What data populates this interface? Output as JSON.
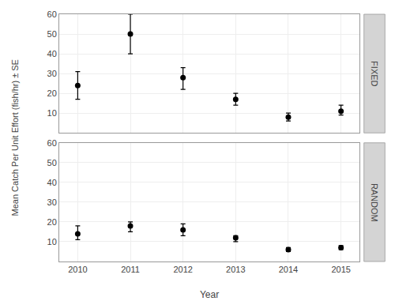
{
  "chart_data": [
    {
      "type": "scatter",
      "title": "FIXED",
      "ylabel": "Mean Catch Per Unit Effort (fish/hr) ± SE",
      "categories": [
        "2010",
        "2011",
        "2012",
        "2013",
        "2014",
        "2015"
      ],
      "values": [
        24,
        50,
        28,
        17,
        8,
        11
      ],
      "error_upper": [
        31,
        60,
        33,
        20,
        10,
        14
      ],
      "error_lower": [
        17,
        40,
        22,
        14,
        6,
        9
      ],
      "color": "black",
      "marker": "circle",
      "ylim": [
        0,
        60
      ],
      "yticks": [
        10,
        20,
        30,
        40,
        50,
        60
      ],
      "grid": true,
      "tick_labels": "y"
    },
    {
      "type": "scatter",
      "title": "RANDOM",
      "xlabel": "Year",
      "categories": [
        "2010",
        "2011",
        "2012",
        "2013",
        "2014",
        "2015"
      ],
      "values": [
        14,
        18,
        16,
        12,
        6,
        7
      ],
      "error_upper": [
        18,
        20,
        19,
        13,
        7,
        8
      ],
      "error_lower": [
        11,
        15,
        13,
        10,
        5,
        6
      ],
      "color": "black",
      "marker": "circle",
      "ylim": [
        0,
        60
      ],
      "yticks": [
        10,
        20,
        30,
        40,
        50,
        60
      ],
      "grid": true
    }
  ]
}
